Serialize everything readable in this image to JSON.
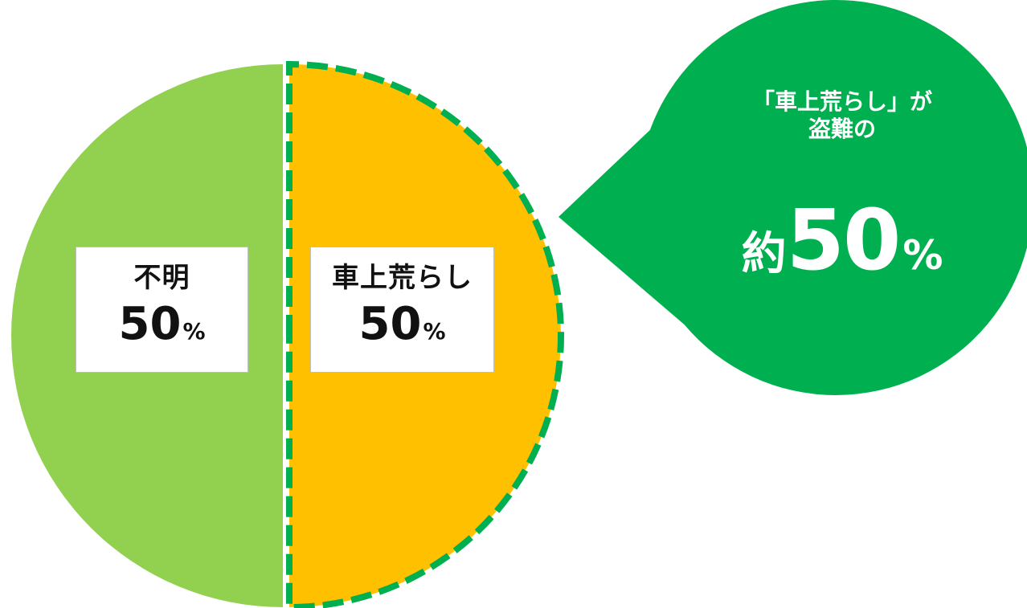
{
  "colors": {
    "unknown_slice": "#92D050",
    "theft_slice": "#FFC000",
    "dashed_outline": "#00B050",
    "callout_bg": "#00B050",
    "label_box_bg": "#FFFFFF",
    "label_text": "#111111",
    "callout_text": "#FFFFFF"
  },
  "chart_data": {
    "type": "pie",
    "title": "",
    "slices": [
      {
        "label": "不明",
        "value": 50,
        "unit": "%",
        "color": "#92D050",
        "highlighted": false
      },
      {
        "label": "車上荒らし",
        "value": 50,
        "unit": "%",
        "color": "#FFC000",
        "highlighted": true
      }
    ]
  },
  "labels": {
    "unknown": {
      "name": "不明",
      "value": "50",
      "unit": "%"
    },
    "theft": {
      "name": "車上荒らし",
      "value": "50",
      "unit": "%"
    }
  },
  "callout": {
    "line1": "「車上荒らし」が",
    "line2": "盗難の",
    "prefix": "約",
    "value": "50",
    "unit": "%"
  }
}
